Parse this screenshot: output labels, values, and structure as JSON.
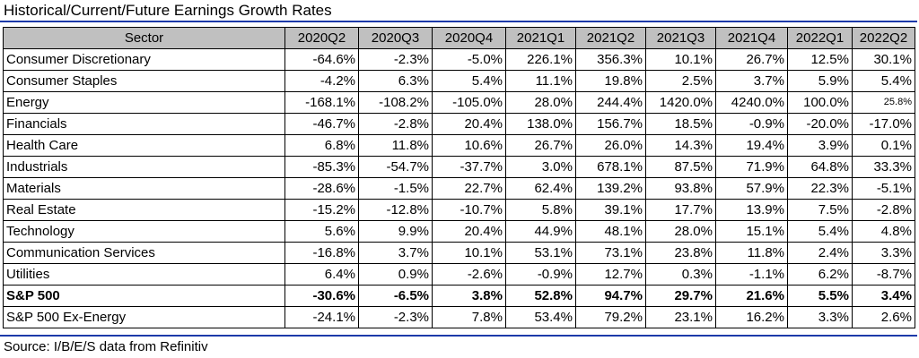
{
  "title": "Historical/Current/Future Earnings Growth Rates",
  "source": "Source: I/B/E/S data from Refinitiv",
  "colors": {
    "rule": "#1c3aa9",
    "header_bg": "#c0c0c0"
  },
  "table": {
    "headers": [
      "Sector",
      "2020Q2",
      "2020Q3",
      "2020Q4",
      "2021Q1",
      "2021Q2",
      "2021Q3",
      "2021Q4",
      "2022Q1",
      "2022Q2"
    ],
    "rows": [
      {
        "sector": "Consumer Discretionary",
        "values": [
          "-64.6%",
          "-2.3%",
          "-5.0%",
          "226.1%",
          "356.3%",
          "10.1%",
          "26.7%",
          "12.5%",
          "30.1%"
        ]
      },
      {
        "sector": "Consumer Staples",
        "values": [
          "-4.2%",
          "6.3%",
          "5.4%",
          "11.1%",
          "19.8%",
          "2.5%",
          "3.7%",
          "5.9%",
          "5.4%"
        ]
      },
      {
        "sector": "Energy",
        "values": [
          "-168.1%",
          "-108.2%",
          "-105.0%",
          "28.0%",
          "244.4%",
          "1420.0%",
          "4240.0%",
          "100.0%",
          "25.8%"
        ]
      },
      {
        "sector": "Financials",
        "values": [
          "-46.7%",
          "-2.8%",
          "20.4%",
          "138.0%",
          "156.7%",
          "18.5%",
          "-0.9%",
          "-20.0%",
          "-17.0%"
        ]
      },
      {
        "sector": "Health Care",
        "values": [
          "6.8%",
          "11.8%",
          "10.6%",
          "26.7%",
          "26.0%",
          "14.3%",
          "19.4%",
          "3.9%",
          "0.1%"
        ]
      },
      {
        "sector": "Industrials",
        "values": [
          "-85.3%",
          "-54.7%",
          "-37.7%",
          "3.0%",
          "678.1%",
          "87.5%",
          "71.9%",
          "64.8%",
          "33.3%"
        ]
      },
      {
        "sector": "Materials",
        "values": [
          "-28.6%",
          "-1.5%",
          "22.7%",
          "62.4%",
          "139.2%",
          "93.8%",
          "57.9%",
          "22.3%",
          "-5.1%"
        ]
      },
      {
        "sector": "Real Estate",
        "values": [
          "-15.2%",
          "-12.8%",
          "-10.7%",
          "5.8%",
          "39.1%",
          "17.7%",
          "13.9%",
          "7.5%",
          "-2.8%"
        ]
      },
      {
        "sector": "Technology",
        "values": [
          "5.6%",
          "9.9%",
          "20.4%",
          "44.9%",
          "48.1%",
          "28.0%",
          "15.1%",
          "5.4%",
          "4.8%"
        ]
      },
      {
        "sector": "Communication Services",
        "values": [
          "-16.8%",
          "3.7%",
          "10.1%",
          "53.1%",
          "73.1%",
          "23.8%",
          "11.8%",
          "2.4%",
          "3.3%"
        ]
      },
      {
        "sector": "Utilities",
        "values": [
          "6.4%",
          "0.9%",
          "-2.6%",
          "-0.9%",
          "12.7%",
          "0.3%",
          "-1.1%",
          "6.2%",
          "-8.7%"
        ]
      },
      {
        "sector": "S&P 500",
        "values": [
          "-30.6%",
          "-6.5%",
          "3.8%",
          "52.8%",
          "94.7%",
          "29.7%",
          "21.6%",
          "5.5%",
          "3.4%"
        ]
      },
      {
        "sector": "S&P 500 Ex-Energy",
        "values": [
          "-24.1%",
          "-2.3%",
          "7.8%",
          "53.4%",
          "79.2%",
          "23.1%",
          "16.2%",
          "3.3%",
          "2.6%"
        ]
      }
    ]
  }
}
